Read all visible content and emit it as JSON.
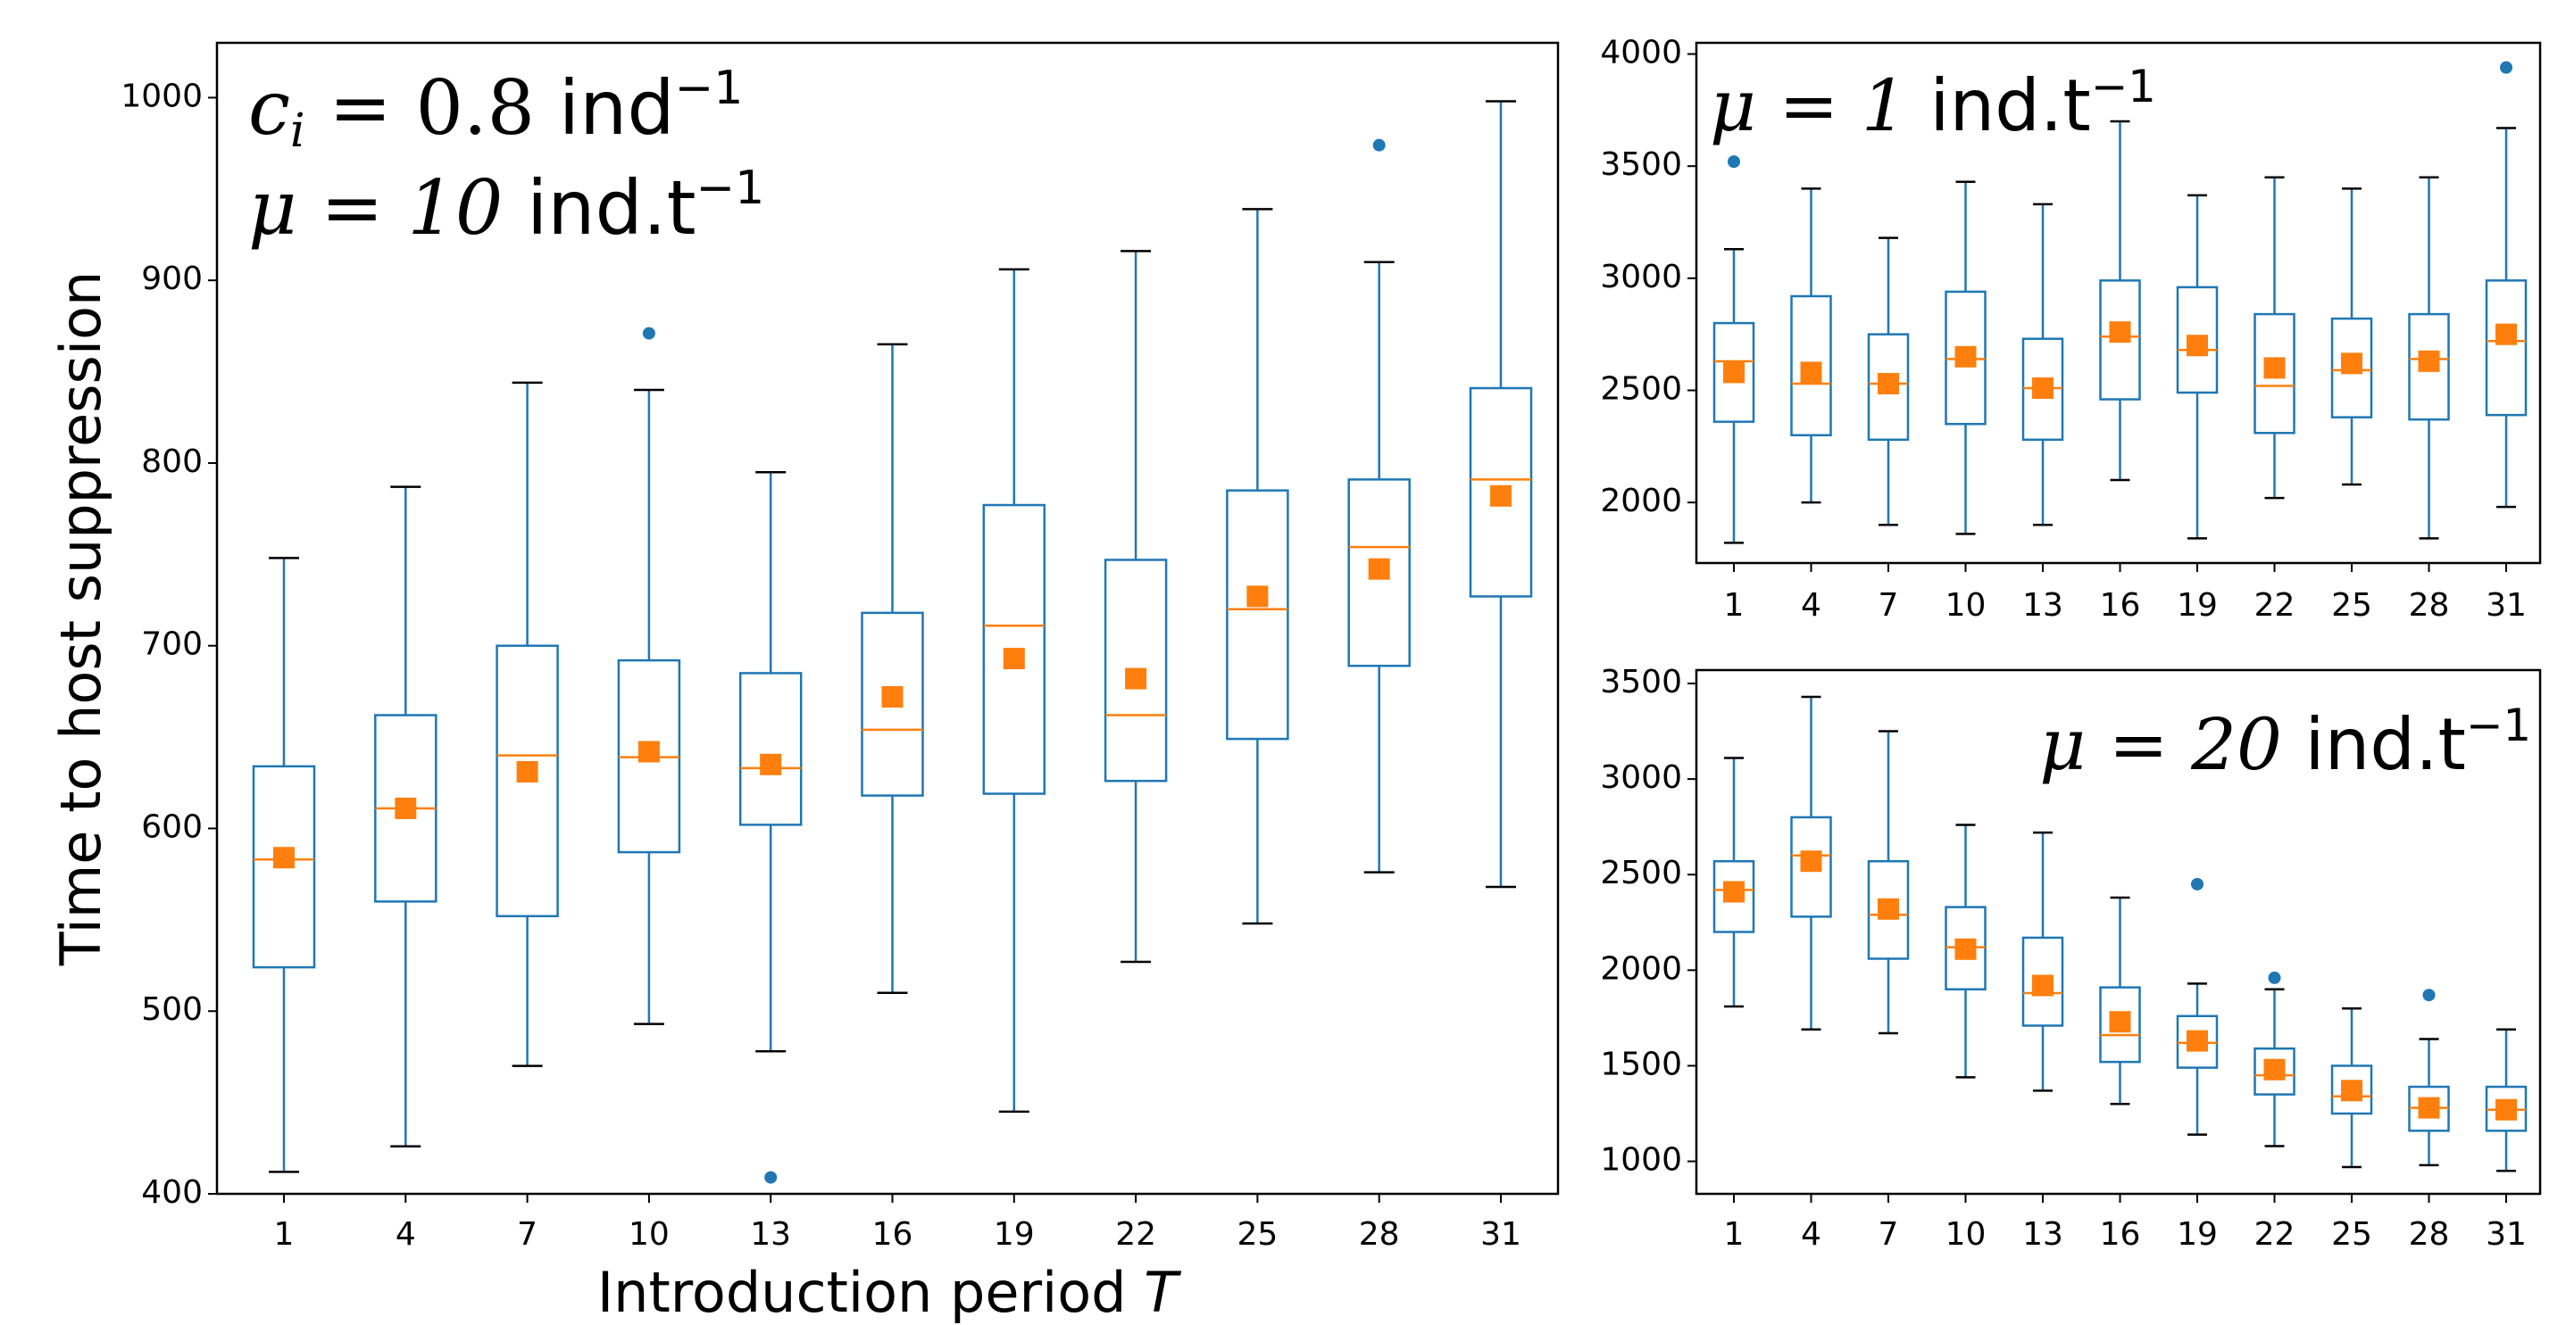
{
  "colors": {
    "box": "#1f77b4",
    "median": "#ff7f0e",
    "mean": "#ff7f0e",
    "whisker_cap": "#000000",
    "outlier": "#1f77b4"
  },
  "figure": {
    "ylabel": "Time to host suppression",
    "xlabel": "Introduction period ",
    "xlabel_var": "T"
  },
  "annotations": {
    "main_c": "c",
    "main_c_sub": "i",
    "main_c_value": " = 0.8 ",
    "main_c_unit": "ind",
    "main_c_exp": "−1",
    "main_mu": "μ = 10 ",
    "main_mu_unit": "ind.t",
    "main_mu_exp": "−1",
    "top_mu": "μ = 1 ",
    "top_mu_unit": "ind.t",
    "top_mu_exp": "−1",
    "bottom_mu": "μ = 20 ",
    "bottom_mu_unit": "ind.t",
    "bottom_mu_exp": "−1"
  },
  "chart_data": [
    {
      "id": "main",
      "type": "box",
      "categories": [
        "1",
        "4",
        "7",
        "10",
        "13",
        "16",
        "19",
        "22",
        "25",
        "28",
        "31"
      ],
      "ylim": [
        400,
        1030
      ],
      "yticks": [
        400,
        500,
        600,
        700,
        800,
        900,
        1000
      ],
      "series": [
        {
          "q1": 524,
          "median": 583,
          "q3": 634,
          "whislo": 412,
          "whishi": 748,
          "mean": 584,
          "outliers": []
        },
        {
          "q1": 560,
          "median": 611,
          "q3": 662,
          "whislo": 426,
          "whishi": 787,
          "mean": 611,
          "outliers": []
        },
        {
          "q1": 552,
          "median": 640,
          "q3": 700,
          "whislo": 470,
          "whishi": 844,
          "mean": 631,
          "outliers": []
        },
        {
          "q1": 587,
          "median": 639,
          "q3": 692,
          "whislo": 493,
          "whishi": 840,
          "mean": 642,
          "outliers": [
            871
          ]
        },
        {
          "q1": 602,
          "median": 633,
          "q3": 685,
          "whislo": 478,
          "whishi": 795,
          "mean": 635,
          "outliers": [
            409
          ]
        },
        {
          "q1": 618,
          "median": 654,
          "q3": 718,
          "whislo": 510,
          "whishi": 865,
          "mean": 672,
          "outliers": []
        },
        {
          "q1": 619,
          "median": 711,
          "q3": 777,
          "whislo": 445,
          "whishi": 906,
          "mean": 693,
          "outliers": []
        },
        {
          "q1": 626,
          "median": 662,
          "q3": 747,
          "whislo": 527,
          "whishi": 916,
          "mean": 682,
          "outliers": []
        },
        {
          "q1": 649,
          "median": 720,
          "q3": 785,
          "whislo": 548,
          "whishi": 939,
          "mean": 727,
          "outliers": []
        },
        {
          "q1": 689,
          "median": 754,
          "q3": 791,
          "whislo": 576,
          "whishi": 910,
          "mean": 742,
          "outliers": [
            974
          ]
        },
        {
          "q1": 727,
          "median": 791,
          "q3": 841,
          "whislo": 568,
          "whishi": 998,
          "mean": 782,
          "outliers": []
        }
      ]
    },
    {
      "id": "top",
      "type": "box",
      "categories": [
        "1",
        "4",
        "7",
        "10",
        "13",
        "16",
        "19",
        "22",
        "25",
        "28",
        "31"
      ],
      "ylim": [
        1730,
        4050
      ],
      "yticks": [
        2000,
        2500,
        3000,
        3500,
        4000
      ],
      "series": [
        {
          "q1": 2360,
          "median": 2630,
          "q3": 2800,
          "whislo": 1820,
          "whishi": 3130,
          "mean": 2580,
          "outliers": [
            3520
          ]
        },
        {
          "q1": 2300,
          "median": 2530,
          "q3": 2920,
          "whislo": 2000,
          "whishi": 3400,
          "mean": 2580,
          "outliers": []
        },
        {
          "q1": 2280,
          "median": 2530,
          "q3": 2750,
          "whislo": 1900,
          "whishi": 3180,
          "mean": 2530,
          "outliers": []
        },
        {
          "q1": 2350,
          "median": 2640,
          "q3": 2940,
          "whislo": 1860,
          "whishi": 3430,
          "mean": 2650,
          "outliers": []
        },
        {
          "q1": 2280,
          "median": 2510,
          "q3": 2730,
          "whislo": 1900,
          "whishi": 3330,
          "mean": 2510,
          "outliers": []
        },
        {
          "q1": 2460,
          "median": 2740,
          "q3": 2990,
          "whislo": 2100,
          "whishi": 3700,
          "mean": 2760,
          "outliers": []
        },
        {
          "q1": 2490,
          "median": 2680,
          "q3": 2960,
          "whislo": 1840,
          "whishi": 3370,
          "mean": 2700,
          "outliers": []
        },
        {
          "q1": 2310,
          "median": 2520,
          "q3": 2840,
          "whislo": 2020,
          "whishi": 3450,
          "mean": 2600,
          "outliers": []
        },
        {
          "q1": 2380,
          "median": 2590,
          "q3": 2820,
          "whislo": 2080,
          "whishi": 3400,
          "mean": 2620,
          "outliers": []
        },
        {
          "q1": 2370,
          "median": 2640,
          "q3": 2840,
          "whislo": 1840,
          "whishi": 3450,
          "mean": 2630,
          "outliers": []
        },
        {
          "q1": 2390,
          "median": 2720,
          "q3": 2990,
          "whislo": 1980,
          "whishi": 3670,
          "mean": 2750,
          "outliers": [
            3940
          ]
        }
      ]
    },
    {
      "id": "bottom",
      "type": "box",
      "categories": [
        "1",
        "4",
        "7",
        "10",
        "13",
        "16",
        "19",
        "22",
        "25",
        "28",
        "31"
      ],
      "ylim": [
        830,
        3570
      ],
      "yticks": [
        1000,
        1500,
        2000,
        2500,
        3000,
        3500
      ],
      "series": [
        {
          "q1": 2200,
          "median": 2420,
          "q3": 2570,
          "whislo": 1810,
          "whishi": 3110,
          "mean": 2410,
          "outliers": []
        },
        {
          "q1": 2280,
          "median": 2600,
          "q3": 2800,
          "whislo": 1690,
          "whishi": 3430,
          "mean": 2570,
          "outliers": []
        },
        {
          "q1": 2060,
          "median": 2290,
          "q3": 2570,
          "whislo": 1670,
          "whishi": 3250,
          "mean": 2320,
          "outliers": []
        },
        {
          "q1": 1900,
          "median": 2120,
          "q3": 2330,
          "whislo": 1440,
          "whishi": 2760,
          "mean": 2110,
          "outliers": []
        },
        {
          "q1": 1710,
          "median": 1880,
          "q3": 2170,
          "whislo": 1370,
          "whishi": 2720,
          "mean": 1920,
          "outliers": []
        },
        {
          "q1": 1520,
          "median": 1660,
          "q3": 1910,
          "whislo": 1300,
          "whishi": 2380,
          "mean": 1730,
          "outliers": []
        },
        {
          "q1": 1490,
          "median": 1620,
          "q3": 1760,
          "whislo": 1140,
          "whishi": 1930,
          "mean": 1630,
          "outliers": [
            2450
          ]
        },
        {
          "q1": 1350,
          "median": 1450,
          "q3": 1590,
          "whislo": 1080,
          "whishi": 1900,
          "mean": 1480,
          "outliers": [
            1960
          ]
        },
        {
          "q1": 1250,
          "median": 1340,
          "q3": 1500,
          "whislo": 970,
          "whishi": 1800,
          "mean": 1370,
          "outliers": []
        },
        {
          "q1": 1160,
          "median": 1280,
          "q3": 1390,
          "whislo": 980,
          "whishi": 1640,
          "mean": 1280,
          "outliers": [
            1870
          ]
        },
        {
          "q1": 1160,
          "median": 1270,
          "q3": 1390,
          "whislo": 950,
          "whishi": 1690,
          "mean": 1270,
          "outliers": []
        }
      ]
    }
  ]
}
